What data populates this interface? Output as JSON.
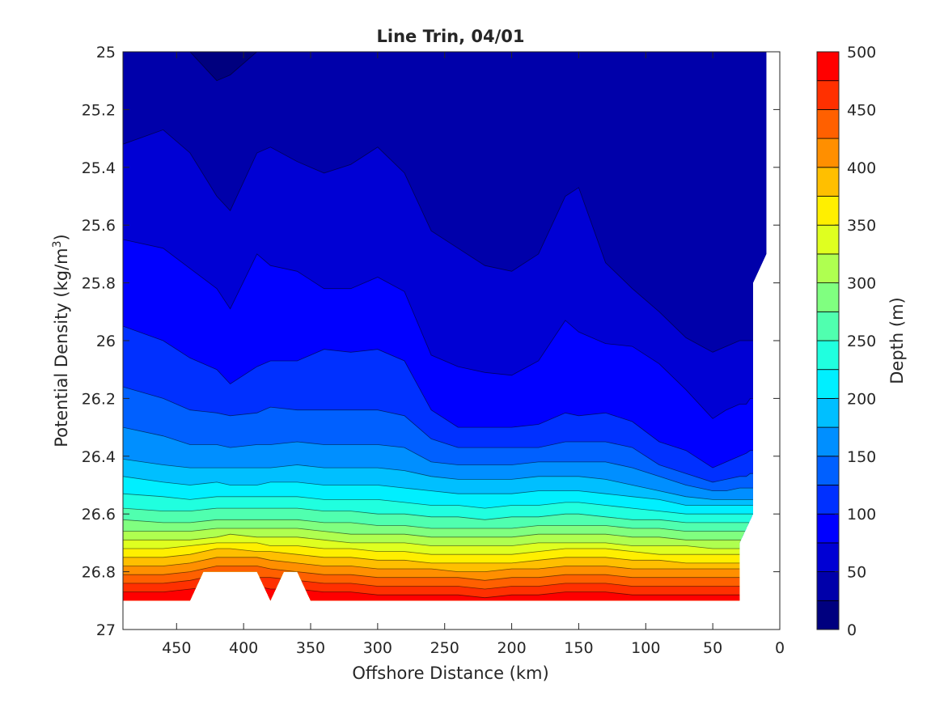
{
  "chart_data": {
    "type": "filled_contour",
    "title": "Line Trin, 04/01",
    "xlabel": "Offshore Distance (km)",
    "ylabel": "Potential Density (kg/m",
    "ylabel_sup": "3",
    "ylabel_end": ")",
    "x_reversed": true,
    "y_reversed": true,
    "xlim": [
      0,
      490
    ],
    "ylim": [
      25,
      27
    ],
    "x_ticks": [
      450,
      400,
      350,
      300,
      250,
      200,
      150,
      100,
      50,
      0
    ],
    "y_ticks": [
      25,
      25.2,
      25.4,
      25.6,
      25.8,
      26,
      26.2,
      26.4,
      26.6,
      26.8,
      27
    ],
    "y_tick_labels": [
      "25",
      "25.2",
      "25.4",
      "25.6",
      "25.8",
      "26",
      "26.2",
      "26.4",
      "26.6",
      "26.8",
      "27"
    ],
    "colorbar": {
      "label": "Depth (m)",
      "limits": [
        0,
        500
      ],
      "ticks": [
        0,
        50,
        100,
        150,
        200,
        250,
        300,
        350,
        400,
        450,
        500
      ],
      "levels": [
        0,
        25,
        50,
        75,
        100,
        125,
        150,
        175,
        200,
        225,
        250,
        275,
        300,
        325,
        350,
        375,
        400,
        425,
        450,
        475,
        500
      ],
      "colors": [
        "#00007F",
        "#0000AA",
        "#0000D4",
        "#0000FF",
        "#0030FF",
        "#0060FF",
        "#008FFF",
        "#00BFFF",
        "#00EFFF",
        "#20FFDF",
        "#50FFAF",
        "#80FF80",
        "#AFFF50",
        "#DFFF20",
        "#FFEF00",
        "#FFBF00",
        "#FF8F00",
        "#FF6000",
        "#FF3000",
        "#FF0000",
        "#D40000"
      ]
    },
    "x_samples": [
      490,
      460,
      440,
      420,
      410,
      390,
      380,
      360,
      340,
      320,
      300,
      280,
      260,
      240,
      220,
      200,
      180,
      160,
      150,
      130,
      110,
      90,
      70,
      50,
      40,
      30,
      25,
      22,
      20,
      10
    ],
    "contour_depths": [
      25,
      50,
      75,
      100,
      125,
      150,
      175,
      200,
      225,
      250,
      275,
      300,
      325,
      350,
      375,
      400,
      425,
      450,
      475
    ],
    "isopycnal_density_at_depth": [
      [
        25.0,
        25.0,
        25.0,
        25.1,
        25.08,
        25.0,
        25.0,
        25.0,
        25.0,
        25.0,
        25.0,
        25.0,
        25.0,
        25.0,
        25.0,
        25.0,
        25.0,
        25.0,
        25.0,
        25.0,
        25.0,
        25.0,
        25.0,
        25.0,
        25.0,
        25.0,
        25.0,
        25.0,
        25.0,
        25.0
      ],
      [
        25.32,
        25.27,
        25.35,
        25.5,
        25.55,
        25.35,
        25.33,
        25.38,
        25.42,
        25.39,
        25.33,
        25.42,
        25.62,
        25.68,
        25.74,
        25.76,
        25.7,
        25.5,
        25.47,
        25.73,
        25.82,
        25.9,
        25.99,
        26.04,
        26.02,
        26.0,
        26.0,
        26.0,
        26.0,
        26.0
      ],
      [
        25.65,
        25.68,
        25.75,
        25.82,
        25.89,
        25.7,
        25.74,
        25.76,
        25.82,
        25.82,
        25.78,
        25.83,
        26.05,
        26.09,
        26.11,
        26.12,
        26.07,
        25.93,
        25.97,
        26.01,
        26.02,
        26.08,
        26.17,
        26.27,
        26.24,
        26.22,
        26.22,
        26.2,
        26.2,
        26.2
      ],
      [
        25.95,
        26.0,
        26.06,
        26.1,
        26.15,
        26.09,
        26.07,
        26.07,
        26.03,
        26.04,
        26.03,
        26.07,
        26.24,
        26.3,
        26.3,
        26.3,
        26.29,
        26.25,
        26.26,
        26.25,
        26.28,
        26.35,
        26.38,
        26.44,
        26.42,
        26.4,
        26.39,
        26.38,
        26.38,
        26.38
      ],
      [
        26.16,
        26.2,
        26.24,
        26.25,
        26.26,
        26.25,
        26.23,
        26.24,
        26.24,
        26.24,
        26.24,
        26.26,
        26.34,
        26.37,
        26.37,
        26.37,
        26.37,
        26.35,
        26.35,
        26.35,
        26.37,
        26.43,
        26.46,
        26.49,
        26.48,
        26.47,
        26.47,
        26.46,
        26.46,
        26.46
      ],
      [
        26.3,
        26.33,
        26.36,
        26.36,
        26.37,
        26.36,
        26.36,
        26.35,
        26.36,
        26.36,
        26.36,
        26.37,
        26.42,
        26.43,
        26.43,
        26.43,
        26.42,
        26.42,
        26.42,
        26.42,
        26.44,
        26.47,
        26.5,
        26.52,
        26.52,
        26.51,
        26.51,
        26.51,
        26.51,
        26.51
      ],
      [
        26.41,
        26.43,
        26.44,
        26.44,
        26.44,
        26.44,
        26.44,
        26.43,
        26.44,
        26.44,
        26.44,
        26.45,
        26.47,
        26.48,
        26.48,
        26.48,
        26.47,
        26.47,
        26.47,
        26.48,
        26.5,
        26.52,
        26.54,
        26.55,
        26.55,
        26.55,
        26.55,
        26.55,
        26.55,
        26.55
      ],
      [
        26.47,
        26.49,
        26.5,
        26.49,
        26.5,
        26.5,
        26.49,
        26.49,
        26.5,
        26.5,
        26.5,
        26.51,
        26.52,
        26.53,
        26.53,
        26.53,
        26.52,
        26.52,
        26.52,
        26.53,
        26.54,
        26.55,
        26.57,
        26.57,
        26.57,
        26.57,
        26.57,
        26.57,
        26.57,
        26.57
      ],
      [
        26.53,
        26.54,
        26.55,
        26.54,
        26.54,
        26.54,
        26.54,
        26.54,
        26.55,
        26.55,
        26.55,
        26.56,
        26.57,
        26.57,
        26.58,
        26.57,
        26.57,
        26.56,
        26.56,
        26.57,
        26.58,
        26.59,
        26.6,
        26.6,
        26.6,
        26.6,
        26.6,
        26.6,
        26.6,
        26.6
      ],
      [
        26.58,
        26.59,
        26.59,
        26.58,
        26.58,
        26.58,
        26.58,
        26.58,
        26.59,
        26.59,
        26.6,
        26.6,
        26.61,
        26.61,
        26.62,
        26.61,
        26.61,
        26.6,
        26.6,
        26.61,
        26.62,
        26.62,
        26.63,
        26.63,
        26.63,
        26.63,
        26.63,
        26.63,
        26.63,
        26.63
      ],
      [
        26.62,
        26.63,
        26.63,
        26.62,
        26.62,
        26.62,
        26.62,
        26.62,
        26.63,
        26.63,
        26.64,
        26.64,
        26.65,
        26.65,
        26.65,
        26.65,
        26.64,
        26.64,
        26.64,
        26.64,
        26.65,
        26.65,
        26.66,
        26.66,
        26.66,
        26.66,
        26.66,
        26.66,
        26.66,
        26.66
      ],
      [
        26.66,
        26.66,
        26.66,
        26.65,
        26.65,
        26.65,
        26.65,
        26.65,
        26.66,
        26.67,
        26.67,
        26.67,
        26.68,
        26.68,
        26.68,
        26.68,
        26.67,
        26.67,
        26.67,
        26.67,
        26.68,
        26.68,
        26.69,
        26.69,
        26.69,
        26.69,
        26.69,
        26.69,
        26.69,
        26.69
      ],
      [
        26.69,
        26.69,
        26.69,
        26.68,
        26.67,
        26.68,
        26.68,
        26.68,
        26.69,
        26.7,
        26.7,
        26.7,
        26.71,
        26.71,
        26.71,
        26.71,
        26.7,
        26.7,
        26.7,
        26.7,
        26.71,
        26.71,
        26.71,
        26.72,
        26.72,
        26.72,
        26.72,
        26.72,
        26.72,
        26.72
      ],
      [
        26.72,
        26.72,
        26.71,
        26.7,
        26.7,
        26.7,
        26.71,
        26.71,
        26.72,
        26.72,
        26.73,
        26.73,
        26.74,
        26.74,
        26.74,
        26.74,
        26.73,
        26.72,
        26.72,
        26.72,
        26.73,
        26.74,
        26.74,
        26.74,
        26.74,
        26.74,
        26.74,
        26.74,
        26.74,
        26.74
      ],
      [
        26.75,
        26.75,
        26.74,
        26.72,
        26.72,
        26.73,
        26.73,
        26.74,
        26.75,
        26.75,
        26.76,
        26.76,
        26.77,
        26.77,
        26.77,
        26.77,
        26.76,
        26.75,
        26.75,
        26.75,
        26.76,
        26.76,
        26.77,
        26.77,
        26.77,
        26.77,
        26.77,
        26.77,
        26.77,
        26.77
      ],
      [
        26.78,
        26.78,
        26.77,
        26.75,
        26.75,
        26.75,
        26.76,
        26.77,
        26.78,
        26.78,
        26.79,
        26.79,
        26.79,
        26.8,
        26.8,
        26.79,
        26.79,
        26.78,
        26.78,
        26.78,
        26.79,
        26.79,
        26.79,
        26.79,
        26.79,
        26.79,
        26.79,
        26.79,
        26.79,
        26.79
      ],
      [
        26.81,
        26.81,
        26.8,
        26.78,
        26.78,
        26.78,
        26.79,
        26.8,
        26.81,
        26.81,
        26.82,
        26.82,
        26.82,
        26.82,
        26.83,
        26.82,
        26.82,
        26.81,
        26.81,
        26.81,
        26.82,
        26.82,
        26.82,
        26.82,
        26.82,
        26.82,
        26.82,
        26.82,
        26.82,
        26.82
      ],
      [
        26.84,
        26.84,
        26.83,
        26.81,
        26.81,
        26.82,
        26.82,
        26.83,
        26.84,
        26.84,
        26.85,
        26.85,
        26.85,
        26.85,
        26.86,
        26.85,
        26.85,
        26.84,
        26.84,
        26.84,
        26.85,
        26.85,
        26.85,
        26.85,
        26.85,
        26.85,
        26.85,
        26.85,
        26.85,
        26.85
      ],
      [
        26.87,
        26.87,
        26.86,
        26.85,
        26.85,
        26.85,
        26.86,
        26.86,
        26.87,
        26.87,
        26.88,
        26.88,
        26.88,
        26.88,
        26.89,
        26.88,
        26.88,
        26.87,
        26.87,
        26.87,
        26.88,
        26.88,
        26.88,
        26.88,
        26.88,
        26.88,
        26.88,
        26.88,
        26.88,
        26.88
      ]
    ],
    "data_outline": [
      [
        490,
        25
      ],
      [
        10,
        25
      ],
      [
        10,
        25.7
      ],
      [
        20,
        25.8
      ],
      [
        20,
        26.6
      ],
      [
        30,
        26.7
      ],
      [
        30,
        26.9
      ],
      [
        350,
        26.9
      ],
      [
        360,
        26.8
      ],
      [
        370,
        26.8
      ],
      [
        380,
        26.9
      ],
      [
        390,
        26.8
      ],
      [
        430,
        26.8
      ],
      [
        440,
        26.9
      ],
      [
        490,
        26.9
      ]
    ]
  }
}
